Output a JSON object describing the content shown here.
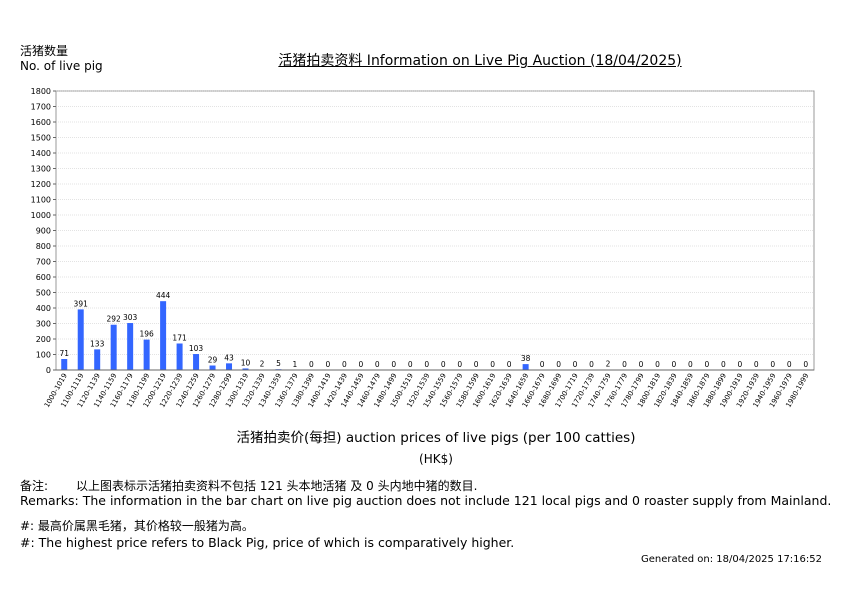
{
  "header": {
    "ylabel_zh": "活猪数量",
    "ylabel_en": "No. of live pig",
    "title": "活猪拍卖资料 Information on Live Pig Auction (18/04/2025)"
  },
  "footer": {
    "xlabel": "活猪拍卖价(每担) auction prices of live pigs (per 100 catties)",
    "unit": "(HK$)",
    "remark_zh_tag": "备注:",
    "remark_zh": "以上图表标示活猪拍卖资料不包括 121 头本地活猪 及 0 头内地中猪的数目.",
    "remark_en": "Remarks: The information in the bar chart on live pig auction does not include 121 local pigs and 0 roaster supply from Mainland.",
    "note_zh": "#: 最高价属黑毛猪，其价格较一般猪为高。",
    "note_en": "#: The highest price refers to Black Pig, price of which is comparatively higher.",
    "generated": "Generated on: 18/04/2025 17:16:52"
  },
  "chart_data": {
    "type": "bar",
    "title": "活猪拍卖资料 Information on Live Pig Auction (18/04/2025)",
    "xlabel": "活猪拍卖价(每担) auction prices of live pigs (per 100 catties)",
    "ylabel": "活猪数量 No. of live pig",
    "ylim": [
      0,
      1800
    ],
    "yticks": [
      0,
      100,
      200,
      300,
      400,
      500,
      600,
      700,
      800,
      900,
      1000,
      1100,
      1200,
      1300,
      1400,
      1500,
      1600,
      1700,
      1800
    ],
    "grid": true,
    "bar_color": "#3366ff",
    "categories": [
      "1000-1019",
      "1100-1119",
      "1120-1139",
      "1140-1159",
      "1160-1179",
      "1180-1199",
      "1200-1219",
      "1220-1239",
      "1240-1259",
      "1260-1279",
      "1280-1299",
      "1300-1319",
      "1320-1339",
      "1340-1359",
      "1360-1379",
      "1380-1399",
      "1400-1419",
      "1420-1439",
      "1440-1459",
      "1460-1479",
      "1480-1499",
      "1500-1519",
      "1520-1539",
      "1540-1559",
      "1560-1579",
      "1580-1599",
      "1600-1619",
      "1620-1639",
      "1640-1659",
      "1660-1679",
      "1680-1699",
      "1700-1719",
      "1720-1739",
      "1740-1759",
      "1760-1779",
      "1780-1799",
      "1800-1819",
      "1820-1839",
      "1840-1859",
      "1860-1879",
      "1880-1899",
      "1900-1919",
      "1920-1939",
      "1940-1959",
      "1960-1979",
      "1980-1999"
    ],
    "values": [
      71,
      391,
      133,
      292,
      303,
      196,
      444,
      171,
      103,
      29,
      43,
      10,
      2,
      5,
      1,
      0,
      0,
      0,
      0,
      0,
      0,
      0,
      0,
      0,
      0,
      0,
      0,
      0,
      38,
      0,
      0,
      0,
      0,
      2,
      0,
      0,
      0,
      0,
      0,
      0,
      0,
      0,
      0,
      0,
      0,
      0
    ]
  }
}
